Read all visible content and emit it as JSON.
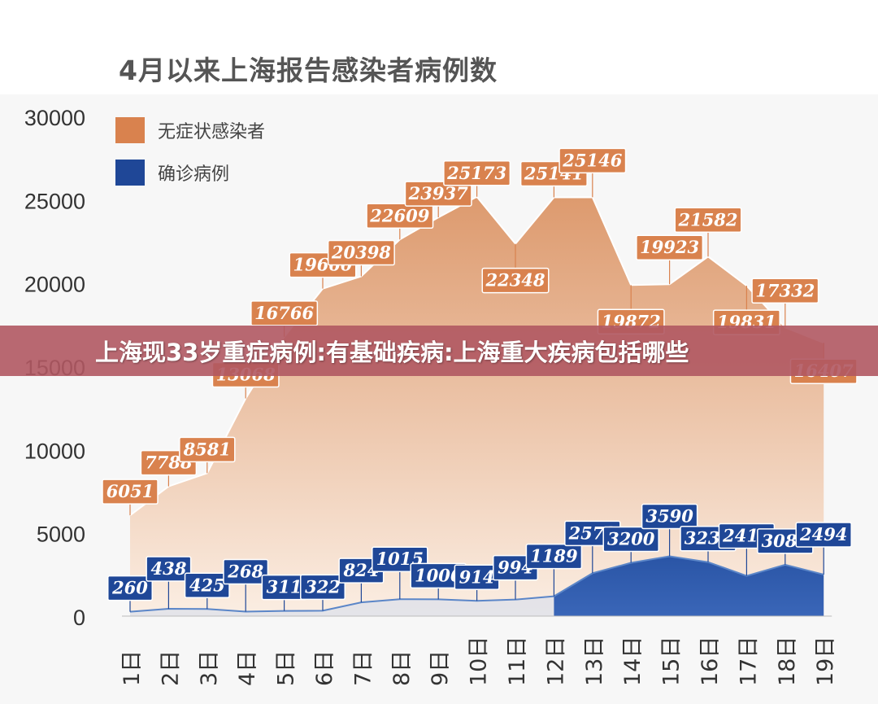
{
  "banner": {
    "text": "上海现33岁重症病例:有基础疾病:上海重大疾病包括哪些"
  },
  "colors": {
    "asymptomatic": "#d9824e",
    "asymptomatic_fill_top": "#dd9a6e",
    "asymptomatic_fill_bottom": "#fbeee3",
    "confirmed": "#1f4797",
    "banner": "#b05862"
  },
  "chart_data": {
    "type": "area",
    "title": "4月以来上海报告感染者病例数",
    "categories": [
      "1日",
      "2日",
      "3日",
      "4日",
      "5日",
      "6日",
      "7日",
      "8日",
      "9日",
      "10日",
      "11日",
      "12日",
      "13日",
      "14日",
      "15日",
      "16日",
      "17日",
      "18日",
      "19日"
    ],
    "series": [
      {
        "name": "无症状感染者",
        "values": [
          6051,
          7788,
          8581,
          13068,
          16766,
          19660,
          20398,
          22609,
          23937,
          25173,
          22348,
          25141,
          25146,
          19872,
          19923,
          21582,
          19831,
          17332,
          16407
        ]
      },
      {
        "name": "确诊病例",
        "values": [
          260,
          438,
          425,
          268,
          311,
          322,
          824,
          1015,
          1006,
          914,
          994,
          1189,
          2573,
          3200,
          3590,
          3238,
          2417,
          3084,
          2494
        ]
      }
    ],
    "yticks": [
      0,
      5000,
      10000,
      15000,
      20000,
      25000,
      30000
    ],
    "ylim": [
      0,
      30000
    ],
    "legend_position": "top-left",
    "grid": false
  }
}
